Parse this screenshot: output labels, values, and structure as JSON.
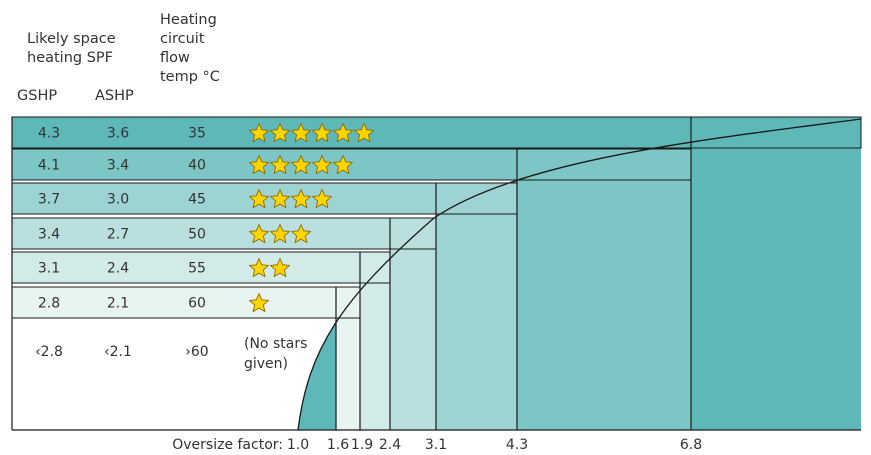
{
  "headers": {
    "spf": "Likely space\nheating SPF",
    "gshp": "GSHP",
    "ashp": "ASHP",
    "flow": "Heating\ncircuit\nflow\ntemp °C"
  },
  "rows": [
    {
      "gshp": "4.3",
      "ashp": "3.6",
      "temp": "35",
      "stars": 6,
      "fill": "#5fb8b8"
    },
    {
      "gshp": "4.1",
      "ashp": "3.4",
      "temp": "40",
      "stars": 5,
      "fill": "#7cc6c5"
    },
    {
      "gshp": "3.7",
      "ashp": "3.0",
      "temp": "45",
      "stars": 4,
      "fill": "#9dd3d2"
    },
    {
      "gshp": "3.4",
      "ashp": "2.7",
      "temp": "50",
      "stars": 3,
      "fill": "#b9e0de"
    },
    {
      "gshp": "3.1",
      "ashp": "2.4",
      "temp": "55",
      "stars": 2,
      "fill": "#d2eae8"
    },
    {
      "gshp": "2.8",
      "ashp": "2.1",
      "temp": "60",
      "stars": 1,
      "fill": "#e8f4f2"
    }
  ],
  "no_star_row": {
    "gshp": "‹2.8",
    "ashp": "‹2.1",
    "temp": "›60",
    "note": "(No stars\ngiven)"
  },
  "oversize": {
    "label": "Oversize factor:",
    "ticks": [
      "1.0",
      "1.6",
      "1.9",
      "2.4",
      "3.1",
      "4.3",
      "6.8"
    ]
  },
  "colors": {
    "star": "#ffd400",
    "star_stroke": "#8a6a00",
    "line": "#1a1a1a",
    "band_right": "#5fb8b8"
  }
}
